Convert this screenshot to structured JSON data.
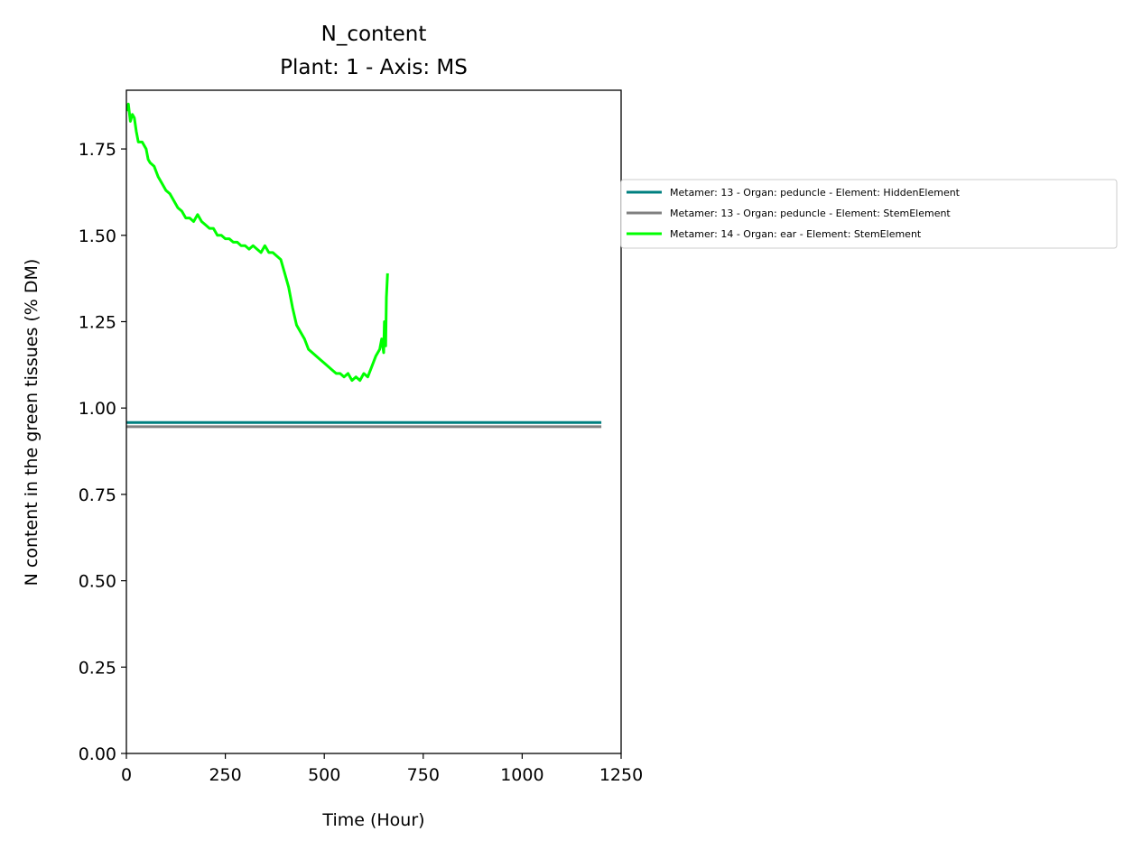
{
  "chart_data": {
    "type": "line",
    "title": "N_content",
    "subtitle": "Plant: 1 - Axis: MS",
    "xlabel": "Time (Hour)",
    "ylabel": "N content in the green tissues (% DM)",
    "xlim": [
      0,
      1250
    ],
    "ylim": [
      0,
      1.92
    ],
    "xticks": [
      0,
      250,
      500,
      750,
      1000,
      1250
    ],
    "xtick_labels": [
      "0",
      "250",
      "500",
      "750",
      "1000",
      "1250"
    ],
    "yticks": [
      0,
      0.25,
      0.5,
      0.75,
      1.0,
      1.25,
      1.5,
      1.75
    ],
    "ytick_labels": [
      "0.00",
      "0.25",
      "0.50",
      "0.75",
      "1.00",
      "1.25",
      "1.50",
      "1.75"
    ],
    "grid": false,
    "legend_position": "outside-right",
    "series": [
      {
        "name": "Metamer: 13 - Organ: peduncle - Element: HiddenElement",
        "color": "#008080",
        "x": [
          0,
          1200
        ],
        "y": [
          0.958,
          0.958
        ]
      },
      {
        "name": "Metamer: 13 - Organ: peduncle - Element: StemElement",
        "color": "#808080",
        "x": [
          0,
          1200
        ],
        "y": [
          0.946,
          0.946
        ]
      },
      {
        "name": "Metamer: 14 - Organ: ear - Element: StemElement",
        "color": "#00ff00",
        "x": [
          0,
          5,
          10,
          15,
          20,
          25,
          30,
          40,
          50,
          55,
          60,
          70,
          80,
          90,
          100,
          110,
          120,
          130,
          140,
          150,
          160,
          170,
          180,
          190,
          200,
          210,
          220,
          230,
          240,
          250,
          260,
          270,
          280,
          290,
          300,
          310,
          320,
          330,
          340,
          350,
          360,
          370,
          380,
          390,
          400,
          410,
          420,
          430,
          440,
          450,
          460,
          470,
          480,
          490,
          500,
          510,
          520,
          530,
          540,
          550,
          560,
          570,
          580,
          590,
          600,
          610,
          620,
          630,
          640,
          645,
          650,
          652,
          655,
          657,
          660
        ],
        "y": [
          1.86,
          1.88,
          1.83,
          1.85,
          1.84,
          1.8,
          1.77,
          1.77,
          1.75,
          1.72,
          1.71,
          1.7,
          1.67,
          1.65,
          1.63,
          1.62,
          1.6,
          1.58,
          1.57,
          1.55,
          1.55,
          1.54,
          1.56,
          1.54,
          1.53,
          1.52,
          1.52,
          1.5,
          1.5,
          1.49,
          1.49,
          1.48,
          1.48,
          1.47,
          1.47,
          1.46,
          1.47,
          1.46,
          1.45,
          1.47,
          1.45,
          1.45,
          1.44,
          1.43,
          1.39,
          1.35,
          1.29,
          1.24,
          1.22,
          1.2,
          1.17,
          1.16,
          1.15,
          1.14,
          1.13,
          1.12,
          1.11,
          1.1,
          1.1,
          1.09,
          1.1,
          1.08,
          1.09,
          1.08,
          1.1,
          1.09,
          1.12,
          1.15,
          1.17,
          1.2,
          1.16,
          1.25,
          1.18,
          1.32,
          1.39
        ]
      }
    ]
  }
}
